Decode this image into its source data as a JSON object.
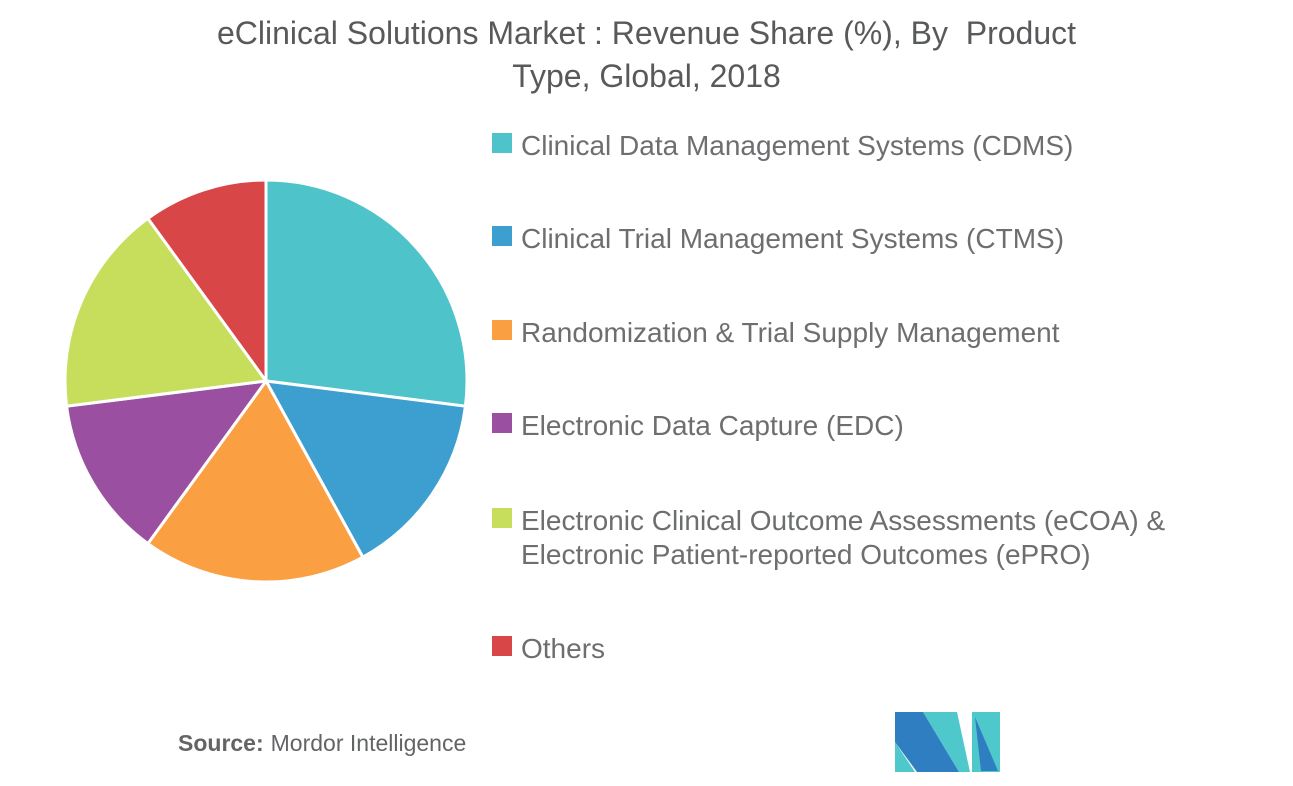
{
  "header": {
    "title_line1": "eClinical Solutions Market : Revenue Share (%), By  Product",
    "title_line2": "Type, Global, 2018"
  },
  "chart_data": {
    "type": "pie",
    "title": "eClinical Solutions Market : Revenue Share (%), By Product Type, Global, 2018",
    "unit": "%",
    "categories": [
      "Clinical Data Management Systems (CDMS)",
      "Clinical Trial Management Systems (CTMS)",
      "Randomization & Trial Supply Management",
      "Electronic Data Capture (EDC)",
      "Electronic Clinical Outcome Assessments (eCOA) & Electronic Patient-reported Outcomes (ePRO)",
      "Others"
    ],
    "values": [
      27,
      15,
      18,
      13,
      17,
      10
    ],
    "colors": [
      "#4EC3C9",
      "#3D9ED0",
      "#FA9F42",
      "#9B4FA0",
      "#C6DE5C",
      "#D94648"
    ],
    "start_angle_deg": 0,
    "direction": "clockwise",
    "slice_border_color": "#FFFFFF",
    "legend_position": "right",
    "data_labels_shown": false
  },
  "source": {
    "label": "Source:",
    "value": "Mordor Intelligence"
  },
  "branding": {
    "logo_blue": "#2E7EC1",
    "logo_teal": "#4FC8CC"
  }
}
